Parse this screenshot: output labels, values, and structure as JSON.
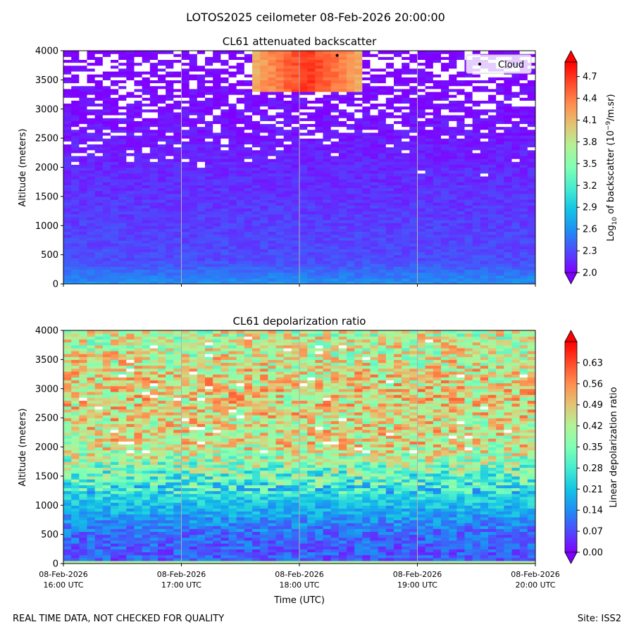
{
  "figure": {
    "suptitle": "LOTOS2025 ceilometer 08-Feb-2026 20:00:00",
    "footer_left": "REAL TIME DATA, NOT CHECKED FOR QUALITY",
    "footer_right": "Site: ISS2"
  },
  "x_axis": {
    "label": "Time (UTC)",
    "ticks": [
      {
        "date": "08-Feb-2026",
        "time": "16:00 UTC"
      },
      {
        "date": "08-Feb-2026",
        "time": "17:00 UTC"
      },
      {
        "date": "08-Feb-2026",
        "time": "18:00 UTC"
      },
      {
        "date": "08-Feb-2026",
        "time": "19:00 UTC"
      },
      {
        "date": "08-Feb-2026",
        "time": "20:00 UTC"
      }
    ],
    "range_hours": [
      16,
      20
    ]
  },
  "chart_data": [
    {
      "type": "heatmap",
      "title": "CL61 attenuated backscatter",
      "ylabel": "Altitude (meters)",
      "ylim": [
        0,
        4000
      ],
      "yticks": [
        "0",
        "500",
        "1000",
        "1500",
        "2000",
        "2500",
        "3000",
        "3500",
        "4000"
      ],
      "colorbar": {
        "label": "Log10 of backscatter (10⁻⁹/m.sr)",
        "label_parts": [
          "Log",
          "10",
          " of backscatter (10",
          "−9",
          "/m.sr)"
        ],
        "range": [
          2.0,
          4.9
        ],
        "ticks": [
          "2.0",
          "2.3",
          "2.6",
          "2.9",
          "3.2",
          "3.5",
          "3.8",
          "4.1",
          "4.4",
          "4.7"
        ],
        "colormap": "rainbow"
      },
      "legend": {
        "label": "Cloud",
        "placement": "top-right"
      },
      "cloud_points": [
        {
          "time_hours": 18.32,
          "altitude_m": 3920
        }
      ],
      "features": [
        {
          "name": "cloud layer",
          "time_start_hours": 17.6,
          "time_end_hours": 18.55,
          "altitude_base_m": 3300,
          "altitude_top_m": 4000,
          "value": 4.6
        }
      ],
      "profile": [
        {
          "altitude_m": 0,
          "value": 2.6
        },
        {
          "altitude_m": 400,
          "value": 2.3
        },
        {
          "altitude_m": 1000,
          "value": 2.25
        },
        {
          "altitude_m": 2000,
          "value": 2.15
        },
        {
          "altitude_m": 3000,
          "value": 2.05
        },
        {
          "altitude_m": 4000,
          "value": 2.0
        }
      ]
    },
    {
      "type": "heatmap",
      "title": "CL61 depolarization ratio",
      "ylabel": "Altitude (meters)",
      "ylim": [
        0,
        4000
      ],
      "yticks": [
        "0",
        "500",
        "1000",
        "1500",
        "2000",
        "2500",
        "3000",
        "3500",
        "4000"
      ],
      "colorbar": {
        "label": "Linear depolarization ratio",
        "range": [
          0.0,
          0.7
        ],
        "ticks": [
          "0.00",
          "0.07",
          "0.14",
          "0.21",
          "0.28",
          "0.35",
          "0.42",
          "0.49",
          "0.56",
          "0.63"
        ],
        "colormap": "rainbow"
      },
      "profile": [
        {
          "altitude_m": 0,
          "value": 0.08
        },
        {
          "altitude_m": 500,
          "value": 0.1
        },
        {
          "altitude_m": 1000,
          "value": 0.2
        },
        {
          "altitude_m": 1500,
          "value": 0.32
        },
        {
          "altitude_m": 2000,
          "value": 0.45
        },
        {
          "altitude_m": 3000,
          "value": 0.47
        },
        {
          "altitude_m": 4000,
          "value": 0.42
        }
      ]
    }
  ]
}
